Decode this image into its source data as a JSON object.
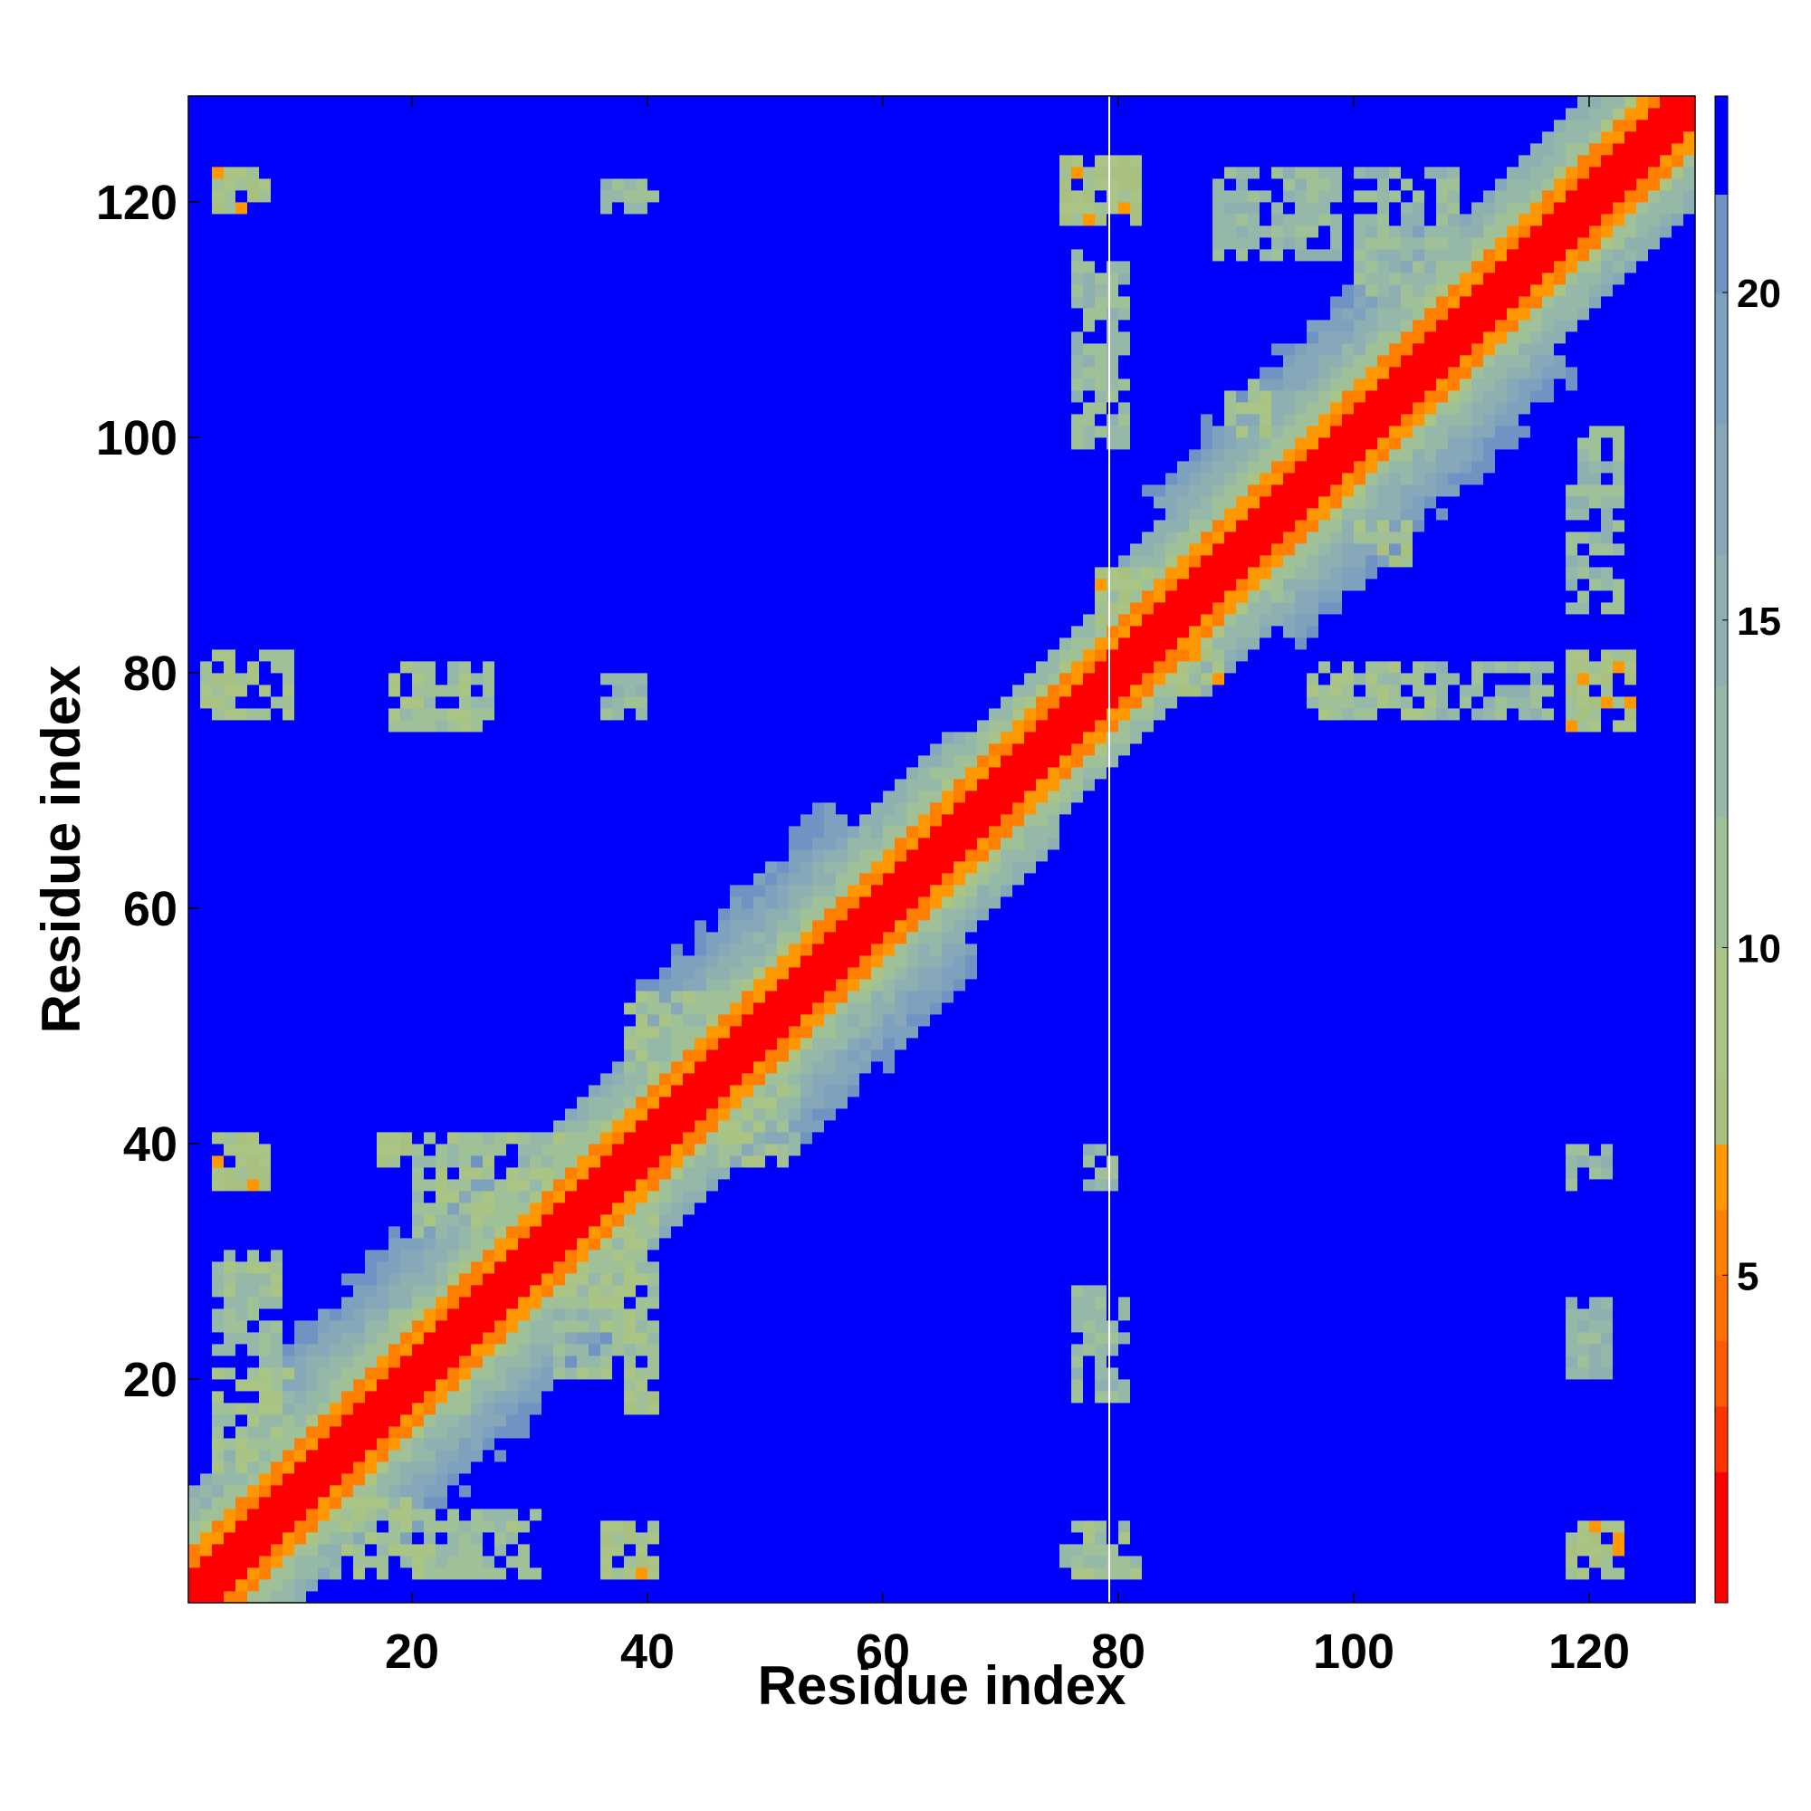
{
  "chart_data": {
    "type": "heatmap",
    "title": "",
    "xlabel": "Residue index",
    "ylabel": "Residue index",
    "residue_count": 128,
    "xlim": [
      1,
      128
    ],
    "ylim": [
      1,
      128
    ],
    "x_ticks": [
      20,
      40,
      60,
      80,
      100,
      120
    ],
    "y_ticks": [
      20,
      40,
      60,
      80,
      100,
      120
    ],
    "colorbar": {
      "ticks": [
        5,
        10,
        15,
        20
      ],
      "range": [
        0,
        23
      ],
      "levels": [
        {
          "max": 2,
          "color": "#ff0000"
        },
        {
          "max": 3,
          "color": "#ff3300"
        },
        {
          "max": 4,
          "color": "#ff5a00"
        },
        {
          "max": 5,
          "color": "#ff6e00"
        },
        {
          "max": 6,
          "color": "#ff7f00"
        },
        {
          "max": 7,
          "color": "#ff9800"
        },
        {
          "max": 8,
          "color": "#a8c080"
        },
        {
          "max": 10,
          "color": "#a9c484"
        },
        {
          "max": 12,
          "color": "#a0c098"
        },
        {
          "max": 14,
          "color": "#96b8a8"
        },
        {
          "max": 16,
          "color": "#8fb0b0"
        },
        {
          "max": 18,
          "color": "#86a8b8"
        },
        {
          "max": 20,
          "color": "#7ea2be"
        },
        {
          "max": 21.5,
          "color": "#6f94c3"
        },
        {
          "max": 23,
          "color": "#0000ff"
        }
      ]
    },
    "diagonal_band": {
      "core": 2,
      "orange": 5,
      "green": 9,
      "width_variation": "wider near residues 15-30, 45-60, 90-110"
    },
    "contact_patches": [
      {
        "x": [
          3,
          7
        ],
        "y": [
          36,
          40
        ],
        "min": 5
      },
      {
        "x": [
          3,
          7
        ],
        "y": [
          119,
          122
        ],
        "min": 5
      },
      {
        "x": [
          2,
          9
        ],
        "y": [
          76,
          81
        ],
        "min": 6
      },
      {
        "x": [
          18,
          26
        ],
        "y": [
          75,
          80
        ],
        "min": 7
      },
      {
        "x": [
          36,
          40
        ],
        "y": [
          3,
          7
        ],
        "min": 5
      },
      {
        "x": [
          36,
          40
        ],
        "y": [
          119,
          121
        ],
        "min": 9
      },
      {
        "x": [
          36,
          39
        ],
        "y": [
          76,
          79
        ],
        "min": 9
      },
      {
        "x": [
          75,
          81
        ],
        "y": [
          3,
          7
        ],
        "min": 7
      },
      {
        "x": [
          75,
          81
        ],
        "y": [
          118,
          123
        ],
        "min": 5
      },
      {
        "x": [
          76,
          80
        ],
        "y": [
          18,
          27
        ],
        "min": 9
      },
      {
        "x": [
          77,
          79
        ],
        "y": [
          36,
          39
        ],
        "min": 9
      },
      {
        "x": [
          76,
          80
        ],
        "y": [
          99,
          115
        ],
        "min": 9
      },
      {
        "x": [
          78,
          82
        ],
        "y": [
          84,
          88
        ],
        "min": 5
      },
      {
        "x": [
          84,
          88
        ],
        "y": [
          78,
          82
        ],
        "min": 5
      },
      {
        "x": [
          96,
          106
        ],
        "y": [
          76,
          80
        ],
        "min": 7
      },
      {
        "x": [
          107,
          116
        ],
        "y": [
          76,
          80
        ],
        "min": 9
      },
      {
        "x": [
          118,
          123
        ],
        "y": [
          75,
          81
        ],
        "min": 5
      },
      {
        "x": [
          118,
          122
        ],
        "y": [
          3,
          7
        ],
        "min": 5
      },
      {
        "x": [
          118,
          121
        ],
        "y": [
          36,
          39
        ],
        "min": 9
      },
      {
        "x": [
          118,
          121
        ],
        "y": [
          20,
          26
        ],
        "min": 10
      },
      {
        "x": [
          118,
          122
        ],
        "y": [
          85,
          100
        ],
        "min": 9
      },
      {
        "x": [
          89,
          92
        ],
        "y": [
          100,
          104
        ],
        "min": 6
      },
      {
        "x": [
          100,
          104
        ],
        "y": [
          89,
          92
        ],
        "min": 6
      },
      {
        "x": [
          88,
          98
        ],
        "y": [
          115,
          122
        ],
        "min": 9
      },
      {
        "x": [
          100,
          108
        ],
        "y": [
          112,
          122
        ],
        "min": 9
      },
      {
        "x": [
          12,
          20
        ],
        "y": [
          3,
          9
        ],
        "min": 7
      },
      {
        "x": [
          3,
          9
        ],
        "y": [
          12,
          20
        ],
        "min": 7
      },
      {
        "x": [
          18,
          30
        ],
        "y": [
          3,
          8
        ],
        "min": 8
      },
      {
        "x": [
          3,
          8
        ],
        "y": [
          18,
          30
        ],
        "min": 8
      },
      {
        "x": [
          17,
          19
        ],
        "y": [
          38,
          40
        ],
        "min": 5
      },
      {
        "x": [
          38,
          40
        ],
        "y": [
          17,
          19
        ],
        "min": 5
      },
      {
        "x": [
          20,
          33
        ],
        "y": [
          32,
          40
        ],
        "min": 7
      },
      {
        "x": [
          32,
          40
        ],
        "y": [
          20,
          33
        ],
        "min": 7
      },
      {
        "x": [
          38,
          50
        ],
        "y": [
          46,
          52
        ],
        "min": 7
      },
      {
        "x": [
          46,
          52
        ],
        "y": [
          38,
          50
        ],
        "min": 7
      }
    ]
  }
}
